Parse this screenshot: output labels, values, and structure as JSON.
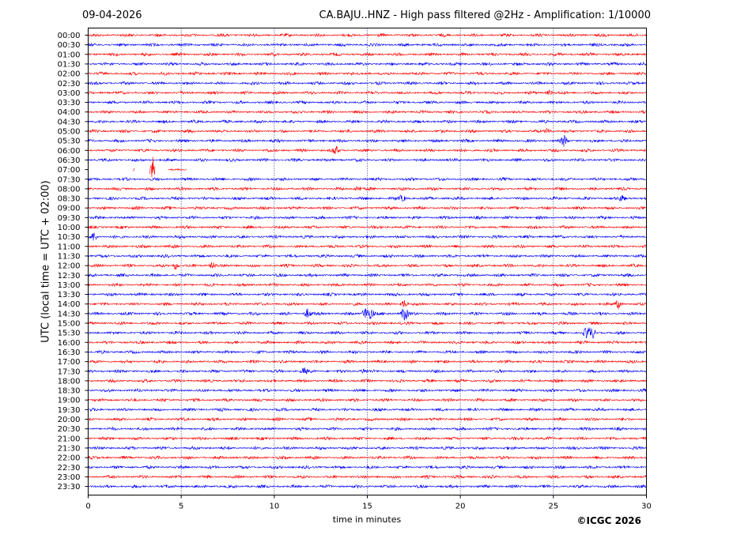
{
  "header": {
    "date": "09-04-2026",
    "title": "CA.BAJU..HNZ - High pass filtered @2Hz - Amplification: 1/10000"
  },
  "footer": {
    "copyright": "©ICGC 2026"
  },
  "chart_data": {
    "type": "line",
    "title": "CA.BAJU..HNZ - High pass filtered @2Hz - Amplification: 1/10000",
    "xlabel": "time in minutes",
    "ylabel": "UTC (local time = UTC + 02:00)",
    "xlim": [
      0,
      30
    ],
    "xticks": [
      0,
      5,
      10,
      15,
      20,
      25,
      30
    ],
    "grid": "vertical dotted lines every 5 minutes",
    "colors": {
      "red": "#ff0000",
      "blue": "#0000ff"
    },
    "series": [
      {
        "row": "00:00",
        "color": "red",
        "events": []
      },
      {
        "row": "00:30",
        "color": "blue",
        "events": []
      },
      {
        "row": "01:00",
        "color": "red",
        "events": []
      },
      {
        "row": "01:30",
        "color": "blue",
        "events": []
      },
      {
        "row": "02:00",
        "color": "red",
        "events": []
      },
      {
        "row": "02:30",
        "color": "blue",
        "events": []
      },
      {
        "row": "03:00",
        "color": "red",
        "events": [
          {
            "t": 24.8,
            "amp": 3
          }
        ]
      },
      {
        "row": "03:30",
        "color": "blue",
        "events": []
      },
      {
        "row": "04:00",
        "color": "red",
        "events": []
      },
      {
        "row": "04:30",
        "color": "blue",
        "events": []
      },
      {
        "row": "05:00",
        "color": "red",
        "events": [
          {
            "t": 24.7,
            "amp": 4
          }
        ]
      },
      {
        "row": "05:30",
        "color": "blue",
        "events": [
          {
            "t": 25.6,
            "amp": 7
          }
        ]
      },
      {
        "row": "06:00",
        "color": "red",
        "events": [
          {
            "t": 13.3,
            "amp": 5
          }
        ]
      },
      {
        "row": "06:30",
        "color": "blue",
        "events": []
      },
      {
        "row": "07:00",
        "color": "red",
        "events": [
          {
            "t": 3.5,
            "amp": 18
          }
        ],
        "gaps": [
          [
            0,
            2.4
          ],
          [
            2.5,
            3.3
          ],
          [
            3.6,
            4.3
          ],
          [
            5.3,
            30
          ]
        ]
      },
      {
        "row": "07:30",
        "color": "blue",
        "events": []
      },
      {
        "row": "08:00",
        "color": "red",
        "events": [
          {
            "t": 14.5,
            "amp": 4
          }
        ]
      },
      {
        "row": "08:30",
        "color": "blue",
        "events": [
          {
            "t": 16.9,
            "amp": 4
          },
          {
            "t": 28.7,
            "amp": 4
          }
        ]
      },
      {
        "row": "09:00",
        "color": "red",
        "events": []
      },
      {
        "row": "09:30",
        "color": "blue",
        "events": []
      },
      {
        "row": "10:00",
        "color": "red",
        "events": []
      },
      {
        "row": "10:30",
        "color": "blue",
        "events": [
          {
            "t": 0.3,
            "amp": 6
          }
        ]
      },
      {
        "row": "11:00",
        "color": "red",
        "events": []
      },
      {
        "row": "11:30",
        "color": "blue",
        "events": []
      },
      {
        "row": "12:00",
        "color": "red",
        "events": [
          {
            "t": 4.7,
            "amp": 5
          },
          {
            "t": 6.7,
            "amp": 4
          }
        ]
      },
      {
        "row": "12:30",
        "color": "blue",
        "events": []
      },
      {
        "row": "13:00",
        "color": "red",
        "events": []
      },
      {
        "row": "13:30",
        "color": "blue",
        "events": []
      },
      {
        "row": "14:00",
        "color": "red",
        "events": [
          {
            "t": 17.0,
            "amp": 5
          },
          {
            "t": 28.5,
            "amp": 6
          }
        ]
      },
      {
        "row": "14:30",
        "color": "blue",
        "events": [
          {
            "t": 11.8,
            "amp": 6
          },
          {
            "t": 14.9,
            "amp": 8
          },
          {
            "t": 15.2,
            "amp": 7
          },
          {
            "t": 17.0,
            "amp": 10
          }
        ]
      },
      {
        "row": "15:00",
        "color": "red",
        "events": []
      },
      {
        "row": "15:30",
        "color": "blue",
        "events": [
          {
            "t": 26.8,
            "amp": 7
          },
          {
            "t": 27.1,
            "amp": 6
          }
        ]
      },
      {
        "row": "16:00",
        "color": "red",
        "events": []
      },
      {
        "row": "16:30",
        "color": "blue",
        "events": []
      },
      {
        "row": "17:00",
        "color": "red",
        "events": []
      },
      {
        "row": "17:30",
        "color": "blue",
        "events": [
          {
            "t": 11.6,
            "amp": 4
          },
          {
            "t": 14.8,
            "amp": 3
          }
        ]
      },
      {
        "row": "18:00",
        "color": "red",
        "events": []
      },
      {
        "row": "18:30",
        "color": "blue",
        "events": []
      },
      {
        "row": "19:00",
        "color": "red",
        "events": []
      },
      {
        "row": "19:30",
        "color": "blue",
        "events": []
      },
      {
        "row": "20:00",
        "color": "red",
        "events": []
      },
      {
        "row": "20:30",
        "color": "blue",
        "events": []
      },
      {
        "row": "21:00",
        "color": "red",
        "events": []
      },
      {
        "row": "21:30",
        "color": "blue",
        "events": []
      },
      {
        "row": "22:00",
        "color": "red",
        "events": []
      },
      {
        "row": "22:30",
        "color": "blue",
        "events": []
      },
      {
        "row": "23:00",
        "color": "red",
        "events": []
      },
      {
        "row": "23:30",
        "color": "blue",
        "events": []
      }
    ]
  }
}
